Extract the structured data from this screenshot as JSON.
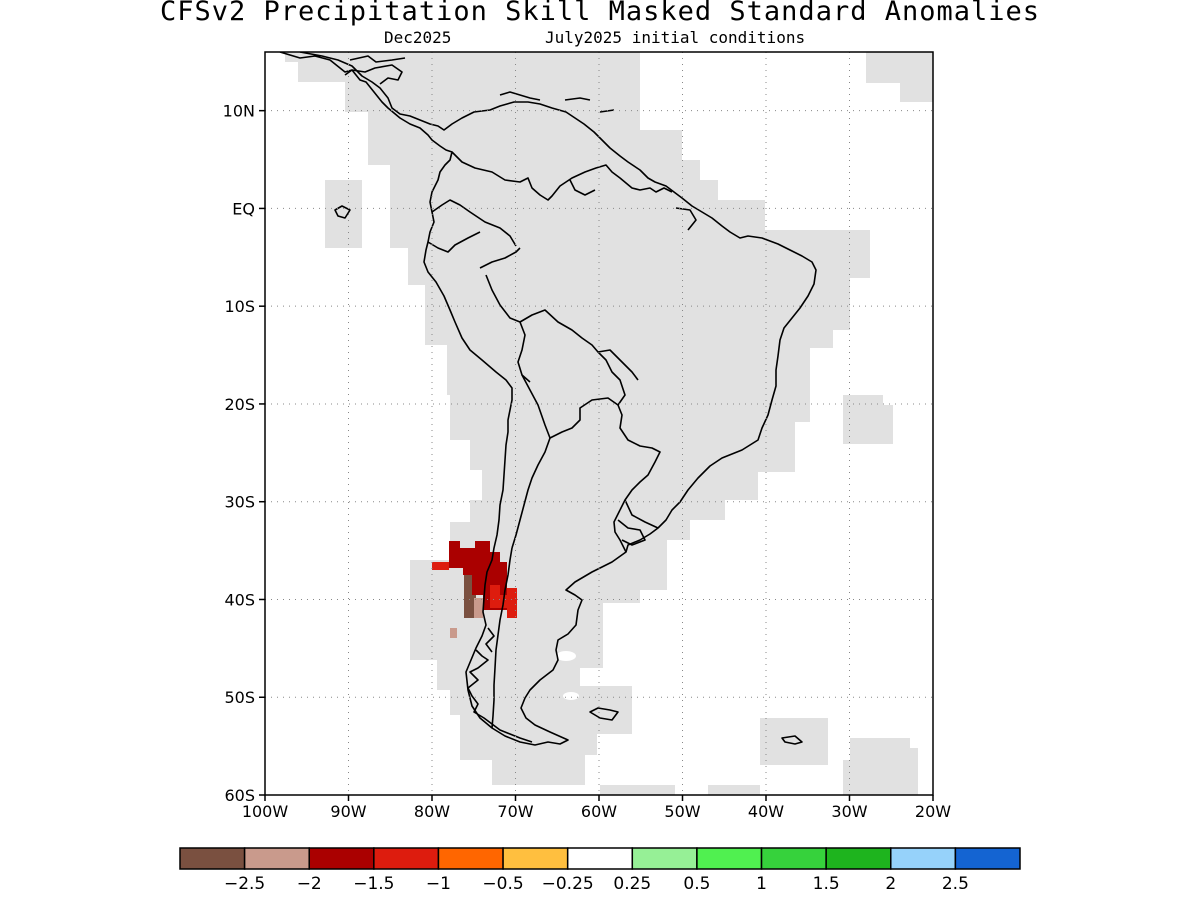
{
  "header": {
    "title": "CFSv2 Precipitation Skill Masked Standard Anomalies",
    "target_month": "Dec2025",
    "initial_conditions": "July2025 initial conditions"
  },
  "map": {
    "region": "South America",
    "lon_range": [
      -100,
      -20
    ],
    "lat_range": [
      -60,
      16
    ],
    "lat_ticks": [
      {
        "lat": 10,
        "label": "10N"
      },
      {
        "lat": 0,
        "label": "EQ"
      },
      {
        "lat": -10,
        "label": "10S"
      },
      {
        "lat": -20,
        "label": "20S"
      },
      {
        "lat": -30,
        "label": "30S"
      },
      {
        "lat": -40,
        "label": "40S"
      },
      {
        "lat": -50,
        "label": "50S"
      },
      {
        "lat": -60,
        "label": "60S"
      }
    ],
    "lon_ticks": [
      {
        "lon": -100,
        "label": "100W"
      },
      {
        "lon": -90,
        "label": "90W"
      },
      {
        "lon": -80,
        "label": "80W"
      },
      {
        "lon": -70,
        "label": "70W"
      },
      {
        "lon": -60,
        "label": "60W"
      },
      {
        "lon": -50,
        "label": "50W"
      },
      {
        "lon": -40,
        "label": "40W"
      },
      {
        "lon": -30,
        "label": "30W"
      },
      {
        "lon": -20,
        "label": "20W"
      }
    ],
    "skill_mask_color": "#e1e1e1",
    "anomaly_patches": [
      {
        "where": "central Chile",
        "category": "-1.5 to -1",
        "color": "#aa0000"
      },
      {
        "where": "central Chile coast",
        "category": "-1 to -0.5",
        "color": "#dd1c0e"
      },
      {
        "where": "southern Chile",
        "category": "-2.5 to -2",
        "color": "#7a5040"
      },
      {
        "where": "southern Chile",
        "category": "-2 to -1.5",
        "color": "#c99a8c"
      }
    ]
  },
  "colorbar": {
    "colors": [
      "#7a5040",
      "#c99a8c",
      "#aa0000",
      "#dd1c0e",
      "#ff6600",
      "#ffbf3f",
      "#ffffff",
      "#96f096",
      "#50f050",
      "#36d23c",
      "#1eb41e",
      "#96d2fa",
      "#1464d2"
    ],
    "labels": [
      "−2.5",
      "−2",
      "−1.5",
      "−1",
      "−0.5",
      "−0.25",
      "0.25",
      "0.5",
      "1",
      "1.5",
      "2",
      "2.5"
    ]
  }
}
